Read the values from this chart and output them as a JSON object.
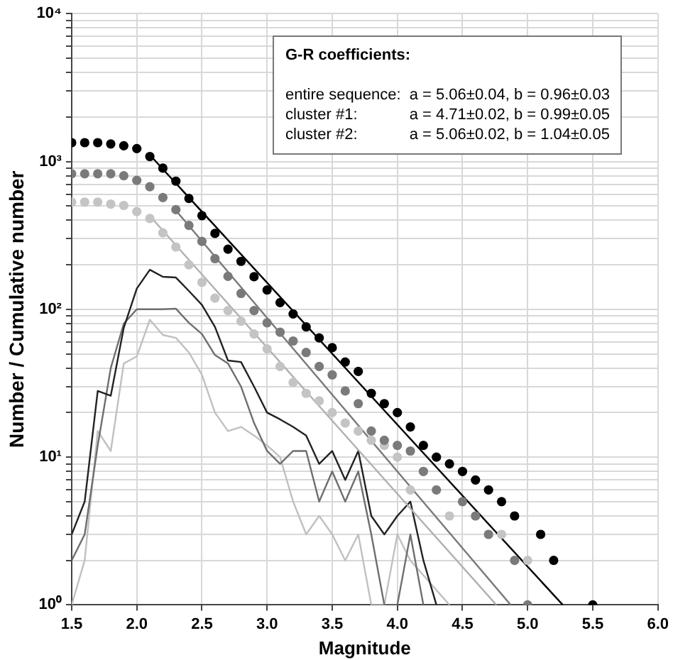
{
  "chart_data": {
    "type": "scatter",
    "xlabel": "Magnitude",
    "ylabel": "Number / Cumulative number",
    "xlim": [
      1.5,
      6.0
    ],
    "xticks": [
      1.5,
      {
        "value": 2,
        "label": "2.0"
      },
      2.5,
      {
        "value": 3,
        "label": "3.0"
      },
      3.5,
      {
        "value": 4,
        "label": "4.0"
      },
      4.5,
      {
        "value": 5,
        "label": "5.0"
      },
      5.5,
      {
        "value": 6,
        "label": "6.0"
      }
    ],
    "ylim": [
      1,
      10000
    ],
    "log": "y",
    "yticks": [
      {
        "value": 1,
        "label": "10⁰"
      },
      {
        "value": 2,
        "label": null
      },
      {
        "value": 3,
        "label": null
      },
      {
        "value": 4,
        "label": null
      },
      {
        "value": 5,
        "label": null
      },
      {
        "value": 6,
        "label": null
      },
      {
        "value": 7,
        "label": null
      },
      {
        "value": 8,
        "label": null
      },
      {
        "value": 9,
        "label": null
      },
      {
        "value": 10,
        "label": "10¹"
      },
      {
        "value": 20,
        "label": null
      },
      {
        "value": 30,
        "label": null
      },
      {
        "value": 40,
        "label": null
      },
      {
        "value": 50,
        "label": null
      },
      {
        "value": 60,
        "label": null
      },
      {
        "value": 70,
        "label": null
      },
      {
        "value": 80,
        "label": null
      },
      {
        "value": 90,
        "label": null
      },
      {
        "value": 100,
        "label": "10²"
      },
      {
        "value": 200,
        "label": null
      },
      {
        "value": 300,
        "label": null
      },
      {
        "value": 400,
        "label": null
      },
      {
        "value": 500,
        "label": null
      },
      {
        "value": 600,
        "label": null
      },
      {
        "value": 700,
        "label": null
      },
      {
        "value": 800,
        "label": null
      },
      {
        "value": 900,
        "label": null
      },
      {
        "value": 1000,
        "label": "10³"
      },
      {
        "value": 2000,
        "label": null
      },
      {
        "value": 3000,
        "label": null
      },
      {
        "value": 4000,
        "label": null
      },
      {
        "value": 5000,
        "label": null
      },
      {
        "value": 6000,
        "label": null
      },
      {
        "value": 7000,
        "label": null
      },
      {
        "value": 8000,
        "label": null
      },
      {
        "value": 9000,
        "label": null
      },
      {
        "value": 10000,
        "label": "10⁴"
      }
    ],
    "grid": true,
    "legend": false,
    "annotations": [
      "G-R coefficients:",
      "entire sequence:",
      "a = 5.06±0.04, b = 0.96±0.03",
      "cluster #1:",
      "a = 4.71±0.02, b = 0.99±0.05",
      "cluster #2:",
      "a = 5.06±0.02, b = 1.04±0.05"
    ],
    "series": [
      {
        "type": "scatter",
        "marker": "circle",
        "color": "#000000",
        "x": [
          1.5,
          1.6,
          1.7,
          1.8,
          1.9,
          2.0,
          2.1,
          2.2,
          2.3,
          2.4,
          2.5,
          2.6,
          2.7,
          2.8,
          2.9,
          3.0,
          3.1,
          3.2,
          3.3,
          3.4,
          3.5,
          3.6,
          3.7,
          3.8,
          3.9,
          4.0,
          4.1,
          4.2,
          4.3,
          4.4,
          4.5,
          4.6,
          4.7,
          4.8,
          4.9,
          5.1,
          5.2,
          5.5
        ],
        "values": [
          1340,
          1340,
          1340,
          1313,
          1276,
          1222,
          1080,
          901,
          736,
          562,
          430,
          326,
          255,
          211,
          166,
          135,
          111,
          93,
          76,
          64,
          55,
          44,
          38,
          27,
          23,
          20,
          16,
          12,
          10,
          9,
          8,
          7,
          6,
          5,
          4,
          3,
          2,
          1
        ]
      },
      {
        "type": "scatter",
        "marker": "circle",
        "color": "#7a7a7a",
        "x": [
          1.5,
          1.6,
          1.7,
          1.8,
          1.9,
          2.0,
          2.1,
          2.2,
          2.3,
          2.4,
          2.5,
          2.6,
          2.7,
          2.8,
          2.9,
          3.0,
          3.1,
          3.2,
          3.3,
          3.4,
          3.5,
          3.6,
          3.7,
          3.8,
          3.9,
          4.0,
          4.1,
          4.2,
          4.3,
          4.5,
          4.6,
          4.7,
          4.9,
          5.0
        ],
        "values": [
          826,
          826,
          826,
          826,
          800,
          745,
          675,
          570,
          472,
          369,
          288,
          220,
          167,
          128,
          98,
          81,
          70,
          61,
          51,
          41,
          36,
          28,
          23,
          15,
          13,
          12,
          11,
          8,
          6,
          5,
          4,
          3,
          2,
          1
        ]
      },
      {
        "type": "scatter",
        "marker": "circle",
        "color": "#c4c4c4",
        "x": [
          1.5,
          1.6,
          1.7,
          1.8,
          1.9,
          2.0,
          2.1,
          2.2,
          2.3,
          2.4,
          2.5,
          2.6,
          2.7,
          2.8,
          2.9,
          3.0,
          3.1,
          3.2,
          3.3,
          3.4,
          3.5,
          3.6,
          3.7,
          3.8,
          3.9,
          4.0,
          4.1,
          4.4,
          4.8,
          5.0
        ],
        "values": [
          531,
          531,
          531,
          515,
          504,
          458,
          411,
          329,
          264,
          200,
          152,
          119,
          98,
          83,
          68,
          54,
          41,
          32,
          27,
          24,
          20,
          17,
          15,
          13,
          12,
          10,
          6,
          4,
          3,
          2
        ]
      },
      {
        "type": "line",
        "marker": "none",
        "color": "#000000",
        "x": [
          2.1,
          5.27
        ],
        "values": [
          1107,
          1
        ]
      },
      {
        "type": "line",
        "marker": "none",
        "color": "#7a7a7a",
        "x": [
          2.3,
          4.87
        ],
        "values": [
          466,
          1
        ]
      },
      {
        "type": "line",
        "marker": "none",
        "color": "#b0b0b0",
        "x": [
          2.1,
          4.76
        ],
        "values": [
          428,
          1
        ]
      },
      {
        "type": "line",
        "marker": "none",
        "color": "#222222",
        "x": [
          1.5,
          1.6,
          1.7,
          1.8,
          1.9,
          2.0,
          2.1,
          2.2,
          2.3,
          2.4,
          2.5,
          2.6,
          2.7,
          2.8,
          2.9,
          3.0,
          3.1,
          3.2,
          3.3,
          3.4,
          3.5,
          3.6,
          3.7,
          3.8,
          3.9,
          4.0,
          4.1,
          4.2,
          4.3
        ],
        "values": [
          3,
          5,
          28,
          26,
          75,
          138,
          185,
          166,
          164,
          133,
          107,
          76,
          45,
          44,
          30,
          20,
          18,
          16,
          14,
          9,
          11,
          7,
          11,
          4,
          3,
          4,
          5,
          2,
          1
        ]
      },
      {
        "type": "line",
        "marker": "none",
        "color": "#6e6e6e",
        "x": [
          1.5,
          1.6,
          1.7,
          1.8,
          1.9,
          2.0,
          2.1,
          2.2,
          2.3,
          2.4,
          2.5,
          2.6,
          2.7,
          2.8,
          2.9,
          3.0,
          3.1,
          3.2,
          3.3,
          3.4,
          3.5,
          3.6,
          3.7,
          3.8,
          3.9,
          4.0,
          4.1,
          4.2
        ],
        "values": [
          2,
          3,
          12,
          40,
          80,
          100,
          100,
          100,
          101,
          81,
          68,
          49,
          43,
          30,
          17,
          11,
          9,
          11,
          11,
          5,
          8,
          5,
          8,
          3,
          1,
          1,
          3,
          1
        ]
      },
      {
        "type": "line",
        "marker": "none",
        "color": "#c0c0c0",
        "x": [
          1.5,
          1.6,
          1.7,
          1.8,
          1.9,
          2.0,
          2.1,
          2.2,
          2.3,
          2.4,
          2.5,
          2.6,
          2.7,
          2.8,
          2.9,
          3.0,
          3.1,
          3.2,
          3.3,
          3.4,
          3.5,
          3.6,
          3.7,
          3.8,
          3.9,
          4.0,
          4.1,
          4.4
        ],
        "values": [
          1,
          2,
          15,
          11,
          43,
          48,
          85,
          67,
          64,
          51,
          36,
          20,
          15,
          16,
          14,
          12,
          10,
          5,
          3,
          4,
          3,
          2,
          3,
          1,
          1,
          3,
          2,
          1
        ]
      }
    ]
  }
}
